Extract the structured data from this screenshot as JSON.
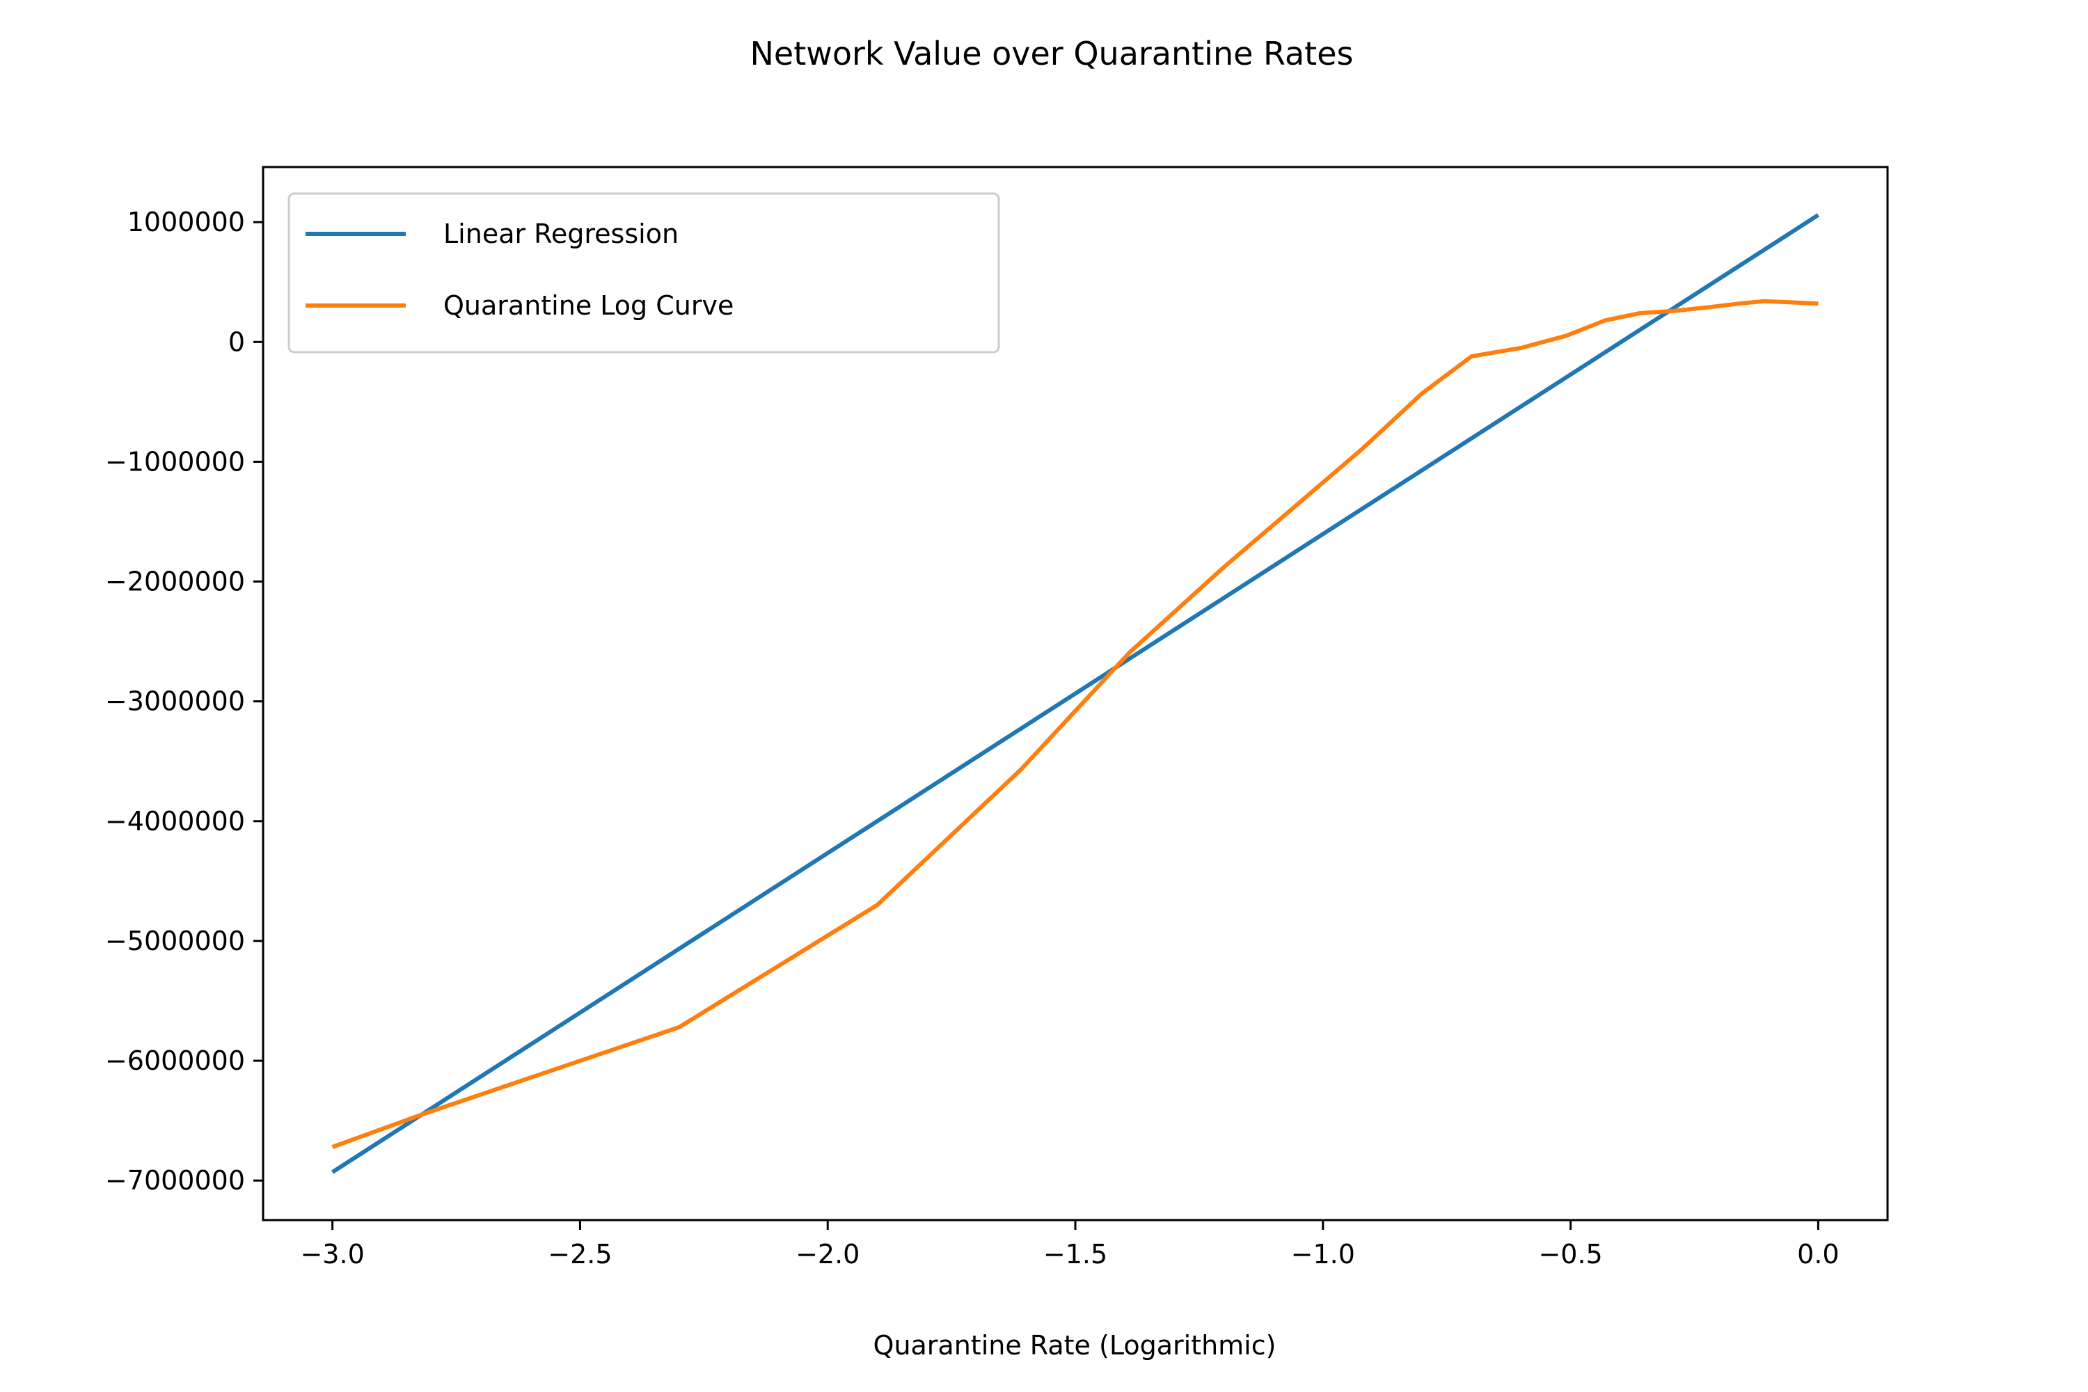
{
  "chart_data": {
    "type": "line",
    "title": "Network Value over Quarantine Rates",
    "xlabel": "Quarantine Rate (Logarithmic)",
    "ylabel": "",
    "xlim": [
      -3.14,
      0.14
    ],
    "ylim": [
      -7330000,
      1460000
    ],
    "x_ticks": [
      -3.0,
      -2.5,
      -2.0,
      -1.5,
      -1.0,
      -0.5,
      0.0
    ],
    "x_tick_labels": [
      "−3.0",
      "−2.5",
      "−2.0",
      "−1.5",
      "−1.0",
      "−0.5",
      "0.0"
    ],
    "y_ticks": [
      1000000,
      0,
      -1000000,
      -2000000,
      -3000000,
      -4000000,
      -5000000,
      -6000000,
      -7000000
    ],
    "y_tick_labels": [
      "1000000",
      "0",
      "−1000000",
      "−2000000",
      "−3000000",
      "−4000000",
      "−5000000",
      "−6000000",
      "−7000000"
    ],
    "grid": false,
    "legend_position": "upper-left",
    "series": [
      {
        "name": "Linear Regression",
        "color": "#1f77b4",
        "x": [
          -3.0,
          0.0
        ],
        "y": [
          -6930000,
          1060000
        ]
      },
      {
        "name": "Quarantine Log Curve",
        "color": "#ff7f0e",
        "x": [
          -3.0,
          -2.82,
          -2.3,
          -1.9,
          -1.61,
          -1.39,
          -1.2,
          -1.05,
          -0.92,
          -0.8,
          -0.7,
          -0.6,
          -0.51,
          -0.43,
          -0.36,
          -0.29,
          -0.22,
          -0.16,
          -0.11,
          -0.05,
          0.0
        ],
        "y": [
          -6720000,
          -6450000,
          -5720000,
          -4700000,
          -3570000,
          -2590000,
          -1880000,
          -1350000,
          -890000,
          -430000,
          -120000,
          -50000,
          50000,
          180000,
          240000,
          260000,
          290000,
          320000,
          340000,
          330000,
          320000
        ]
      }
    ]
  }
}
